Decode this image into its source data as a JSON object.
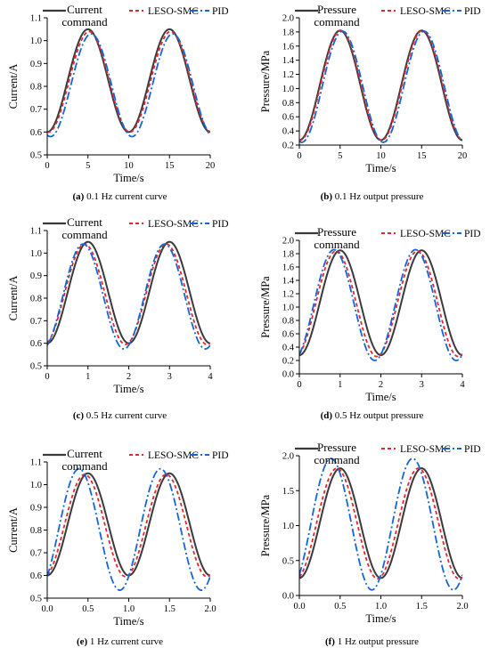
{
  "colors": {
    "command": "#3a3a3a",
    "leso_smc": "#e8262a",
    "pid": "#1565d8"
  },
  "chart_data": [
    {
      "id": "a",
      "type": "line",
      "caption_letter": "(a)",
      "caption_text": " 0.1 Hz current curve",
      "xlabel": "Time/s",
      "ylabel": "Current/A",
      "xlim": [
        0,
        20
      ],
      "ylim": [
        0.5,
        1.1
      ],
      "xticks": [
        0,
        5,
        10,
        15,
        20
      ],
      "xtick_labels": [
        "0",
        "5",
        "10",
        "15",
        "20"
      ],
      "yticks": [
        0.5,
        0.6,
        0.7,
        0.8,
        0.9,
        1.0,
        1.1
      ],
      "ytick_labels": [
        "0.5",
        "0.6",
        "0.7",
        "0.8",
        "0.9",
        "1.0",
        "1.1"
      ],
      "legend": [
        {
          "text": [
            "Current",
            "command"
          ]
        },
        {
          "text": [
            "LESO-SMC"
          ]
        },
        {
          "text": [
            "PID"
          ]
        }
      ],
      "series": [
        {
          "name": "Current command",
          "role": "command",
          "offset": 0.6,
          "amplitude": 0.45,
          "frequency_hz": 0.1,
          "phase_shift_s": 0.0
        },
        {
          "name": "LESO-SMC",
          "role": "leso_smc",
          "offset": 0.6,
          "amplitude": 0.44,
          "frequency_hz": 0.1,
          "phase_shift_s": 0.15
        },
        {
          "name": "PID",
          "role": "pid",
          "offset": 0.58,
          "amplitude": 0.45,
          "frequency_hz": 0.1,
          "phase_shift_s": 0.4
        }
      ]
    },
    {
      "id": "b",
      "type": "line",
      "caption_letter": "(b)",
      "caption_text": " 0.1 Hz output pressure",
      "xlabel": "Time/s",
      "ylabel": "Pressure/MPa",
      "xlim": [
        0,
        20
      ],
      "ylim": [
        0.2,
        2.0
      ],
      "xticks": [
        0,
        5,
        10,
        15,
        20
      ],
      "xtick_labels": [
        "0",
        "5",
        "10",
        "15",
        "20"
      ],
      "yticks": [
        0.2,
        0.4,
        0.6,
        0.8,
        1.0,
        1.2,
        1.4,
        1.6,
        1.8,
        2.0
      ],
      "ytick_labels": [
        "0.2",
        "0.4",
        "0.6",
        "0.8",
        "1.0",
        "1.2",
        "1.4",
        "1.6",
        "1.8",
        "2.0"
      ],
      "legend": [
        {
          "text": [
            "Pressure",
            "command"
          ]
        },
        {
          "text": [
            "LESO-SMC"
          ]
        },
        {
          "text": [
            "PID"
          ]
        }
      ],
      "series": [
        {
          "name": "Pressure command",
          "role": "command",
          "offset": 0.27,
          "amplitude": 1.55,
          "frequency_hz": 0.1,
          "phase_shift_s": 0.0
        },
        {
          "name": "LESO-SMC",
          "role": "leso_smc",
          "offset": 0.27,
          "amplitude": 1.55,
          "frequency_hz": 0.1,
          "phase_shift_s": 0.1
        },
        {
          "name": "PID",
          "role": "pid",
          "offset": 0.24,
          "amplitude": 1.57,
          "frequency_hz": 0.1,
          "phase_shift_s": 0.3
        }
      ]
    },
    {
      "id": "c",
      "type": "line",
      "caption_letter": "(c)",
      "caption_text": " 0.5 Hz current curve",
      "xlabel": "Time/s",
      "ylabel": "Current/A",
      "xlim": [
        0,
        4
      ],
      "ylim": [
        0.5,
        1.1
      ],
      "xticks": [
        0,
        1,
        2,
        3,
        4
      ],
      "xtick_labels": [
        "0",
        "1",
        "2",
        "3",
        "4"
      ],
      "yticks": [
        0.5,
        0.6,
        0.7,
        0.8,
        0.9,
        1.0,
        1.1
      ],
      "ytick_labels": [
        "0.5",
        "0.6",
        "0.7",
        "0.8",
        "0.9",
        "1.0",
        "1.1"
      ],
      "legend": [
        {
          "text": [
            "Current",
            "command"
          ]
        },
        {
          "text": [
            "LESO-SMC"
          ]
        },
        {
          "text": [
            "PID"
          ]
        }
      ],
      "series": [
        {
          "name": "Current command",
          "role": "command",
          "offset": 0.6,
          "amplitude": 0.45,
          "frequency_hz": 0.5,
          "phase_shift_s": 0.0
        },
        {
          "name": "LESO-SMC",
          "role": "leso_smc",
          "offset": 0.595,
          "amplitude": 0.445,
          "frequency_hz": 0.5,
          "phase_shift_s": -0.08
        },
        {
          "name": "PID",
          "role": "pid",
          "offset": 0.575,
          "amplitude": 0.465,
          "frequency_hz": 0.5,
          "phase_shift_s": -0.12
        }
      ]
    },
    {
      "id": "d",
      "type": "line",
      "caption_letter": "(d)",
      "caption_text": " 0.5 Hz output pressure",
      "xlabel": "Time/s",
      "ylabel": "Pressure/MPa",
      "xlim": [
        0,
        4
      ],
      "ylim": [
        0.0,
        2.0
      ],
      "xticks": [
        0,
        1,
        2,
        3,
        4
      ],
      "xtick_labels": [
        "0",
        "1",
        "2",
        "3",
        "4"
      ],
      "yticks": [
        0.0,
        0.2,
        0.4,
        0.6,
        0.8,
        1.0,
        1.2,
        1.4,
        1.6,
        1.8,
        2.0
      ],
      "ytick_labels": [
        "0.0",
        "0.2",
        "0.4",
        "0.6",
        "0.8",
        "1.0",
        "1.2",
        "1.4",
        "1.6",
        "1.8",
        "2.0"
      ],
      "legend": [
        {
          "text": [
            "Pressure",
            "command"
          ]
        },
        {
          "text": [
            "LESO-SMC"
          ]
        },
        {
          "text": [
            "PID"
          ]
        }
      ],
      "series": [
        {
          "name": "Pressure command",
          "role": "command",
          "offset": 0.28,
          "amplitude": 1.57,
          "frequency_hz": 0.5,
          "phase_shift_s": 0.0
        },
        {
          "name": "LESO-SMC",
          "role": "leso_smc",
          "offset": 0.26,
          "amplitude": 1.58,
          "frequency_hz": 0.5,
          "phase_shift_s": -0.1
        },
        {
          "name": "PID",
          "role": "pid",
          "offset": 0.2,
          "amplitude": 1.66,
          "frequency_hz": 0.5,
          "phase_shift_s": -0.15
        }
      ]
    },
    {
      "id": "e",
      "type": "line",
      "caption_letter": "(e)",
      "caption_text": " 1 Hz current curve",
      "xlabel": "Time/s",
      "ylabel": "Current/A",
      "xlim": [
        0,
        2.0
      ],
      "ylim": [
        0.5,
        1.1
      ],
      "xticks": [
        0.0,
        0.5,
        1.0,
        1.5,
        2.0
      ],
      "xtick_labels": [
        "0.0",
        "0.5",
        "1.0",
        "1.5",
        "2.0"
      ],
      "yticks": [
        0.5,
        0.6,
        0.7,
        0.8,
        0.9,
        1.0,
        1.1
      ],
      "ytick_labels": [
        "0.5",
        "0.6",
        "0.7",
        "0.8",
        "0.9",
        "1.0",
        "1.1"
      ],
      "legend": [
        {
          "text": [
            "Current",
            "command"
          ]
        },
        {
          "text": [
            "LESO-SMC"
          ]
        },
        {
          "text": [
            "PID"
          ]
        }
      ],
      "series": [
        {
          "name": "Current command",
          "role": "command",
          "offset": 0.6,
          "amplitude": 0.45,
          "frequency_hz": 1.0,
          "phase_shift_s": 0.0
        },
        {
          "name": "LESO-SMC",
          "role": "leso_smc",
          "offset": 0.595,
          "amplitude": 0.45,
          "frequency_hz": 1.0,
          "phase_shift_s": -0.04
        },
        {
          "name": "PID",
          "role": "pid",
          "offset": 0.535,
          "amplitude": 0.535,
          "frequency_hz": 1.0,
          "phase_shift_s": -0.11
        }
      ]
    },
    {
      "id": "f",
      "type": "line",
      "caption_letter": "(f)",
      "caption_text": " 1 Hz output pressure",
      "xlabel": "Time/s",
      "ylabel": "Pressure/MPa",
      "xlim": [
        0,
        2.0
      ],
      "ylim": [
        0.0,
        2.0
      ],
      "xticks": [
        0.0,
        0.5,
        1.0,
        1.5,
        2.0
      ],
      "xtick_labels": [
        "0.0",
        "0.5",
        "1.0",
        "1.5",
        "2.0"
      ],
      "yticks": [
        0.0,
        0.5,
        1.0,
        1.5,
        2.0
      ],
      "ytick_labels": [
        "0.0",
        "0.5",
        "1.0",
        "1.5",
        "2.0"
      ],
      "legend": [
        {
          "text": [
            "Pressure",
            "command"
          ]
        },
        {
          "text": [
            "LESO-SMC"
          ]
        },
        {
          "text": [
            "PID"
          ]
        }
      ],
      "series": [
        {
          "name": "Pressure command",
          "role": "command",
          "offset": 0.25,
          "amplitude": 1.57,
          "frequency_hz": 1.0,
          "phase_shift_s": 0.0
        },
        {
          "name": "LESO-SMC",
          "role": "leso_smc",
          "offset": 0.24,
          "amplitude": 1.58,
          "frequency_hz": 1.0,
          "phase_shift_s": -0.04
        },
        {
          "name": "PID",
          "role": "pid",
          "offset": 0.08,
          "amplitude": 1.88,
          "frequency_hz": 1.0,
          "phase_shift_s": -0.11
        }
      ]
    }
  ]
}
